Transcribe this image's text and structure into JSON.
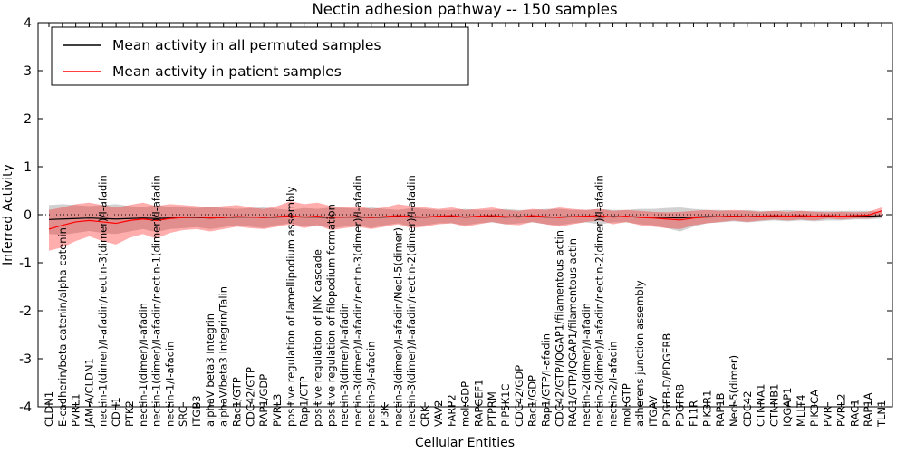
{
  "chart_data": {
    "type": "line",
    "title": "Nectin adhesion pathway -- 150 samples",
    "xlabel": "Cellular Entities",
    "ylabel": "Inferred Activity",
    "ylim": [
      -4,
      4
    ],
    "yticks": [
      -4,
      -3,
      -2,
      -1,
      0,
      1,
      2,
      3,
      4
    ],
    "grid": false,
    "zero_line": true,
    "legend_position": "upper left",
    "categories": [
      "CLDN1",
      "E-cadherin/beta catenin/alpha catenin",
      "PVRL1",
      "JAM-A/CLDN1",
      "nectin-1(dimer)/I-afadin/nectin-3(dimer)/I-afadin",
      "CDH1",
      "PTK2",
      "nectin-1(dimer)/I-afadin",
      "nectin-1(dimer)/I-afadin/nectin-1(dimer)/I-afadin",
      "nectin-1/I-afadin",
      "SRC",
      "ITGB3",
      "alphaV beta3 Integrin",
      "alphaV/beta3 Integrin/Talin",
      "Rac1/GTP",
      "CDC42/GTP",
      "RAP1/GDP",
      "PVRL3",
      "positive regulation of lamellipodium assembly",
      "Rap1/GTP",
      "positive regulation of JNK cascade",
      "positive regulation of filopodium formation",
      "nectin-3(dimer)/I-afadin",
      "nectin-3(dimer)/I-afadin/nectin-3(dimer)/I-afadin",
      "nectin-3/I-afadin",
      "PI3K",
      "nectin-3(dimer)/I-afadin/Necl-5(dimer)",
      "nectin-3(dimer)/I-afadin/nectin-2(dimer)/I-afadin",
      "CRK",
      "VAV2",
      "FARP2",
      "mol:GDP",
      "RAPGEF1",
      "PTPRM",
      "PIP5K1C",
      "CDC42/GDP",
      "Rac1/GDP",
      "Rap1/GTP/I-afadin",
      "CDC42/GTP/IQGAP1/filamentous actin",
      "RAC1/GTP/IQGAP1/filamentous actin",
      "nectin-2(dimer)/I-afadin",
      "nectin-2(dimer)/I-afadin/nectin-2(dimer)/I-afadin",
      "nectin-2/I-afadin",
      "mol:GTP",
      "adherens junction assembly",
      "ITGAV",
      "PDGFB-D/PDGFRB",
      "PDGFRB",
      "F11R",
      "PIK3R1",
      "RAP1B",
      "Necl-5(dimer)",
      "CDC42",
      "CTNNA1",
      "CTNNB1",
      "IQGAP1",
      "MLLT4",
      "PIK3CA",
      "PVR",
      "PVRL2",
      "RAC1",
      "RAP1A",
      "TLN1"
    ],
    "series": [
      {
        "name": "Mean activity in all permuted samples",
        "color": "#000000",
        "values": [
          -0.1,
          -0.09,
          -0.08,
          -0.07,
          -0.08,
          -0.09,
          -0.08,
          -0.07,
          -0.08,
          -0.07,
          -0.06,
          -0.06,
          -0.07,
          -0.06,
          -0.05,
          -0.05,
          -0.06,
          -0.05,
          -0.04,
          -0.05,
          -0.05,
          -0.06,
          -0.05,
          -0.05,
          -0.06,
          -0.05,
          -0.04,
          -0.05,
          -0.05,
          -0.04,
          -0.04,
          -0.05,
          -0.04,
          -0.04,
          -0.05,
          -0.04,
          -0.04,
          -0.05,
          -0.05,
          -0.04,
          -0.04,
          -0.05,
          -0.04,
          -0.04,
          -0.05,
          -0.05,
          -0.06,
          -0.07,
          -0.05,
          -0.04,
          -0.04,
          -0.03,
          -0.04,
          -0.03,
          -0.03,
          -0.04,
          -0.03,
          -0.03,
          -0.03,
          -0.03,
          -0.03,
          -0.03,
          -0.02
        ]
      },
      {
        "name": "Mean activity in patient samples",
        "color": "#ff0000",
        "values": [
          -0.3,
          -0.22,
          -0.15,
          -0.12,
          -0.15,
          -0.18,
          -0.12,
          -0.09,
          -0.12,
          -0.08,
          -0.06,
          -0.05,
          -0.07,
          -0.06,
          -0.04,
          -0.05,
          -0.06,
          -0.04,
          -0.02,
          -0.05,
          -0.03,
          -0.06,
          -0.05,
          -0.04,
          -0.06,
          -0.04,
          -0.02,
          -0.04,
          -0.05,
          -0.03,
          -0.02,
          -0.05,
          -0.03,
          -0.02,
          -0.04,
          -0.05,
          -0.02,
          -0.04,
          -0.06,
          -0.04,
          -0.03,
          -0.02,
          -0.05,
          -0.03,
          -0.06,
          -0.07,
          -0.09,
          -0.11,
          -0.07,
          -0.05,
          -0.04,
          -0.03,
          -0.04,
          -0.03,
          -0.02,
          -0.03,
          -0.02,
          -0.03,
          -0.02,
          -0.03,
          -0.02,
          -0.01,
          0.08
        ]
      }
    ],
    "bands": [
      {
        "name": "permuted-samples-range",
        "color": "rgba(0,0,0,0.18)",
        "upper": [
          0.2,
          0.22,
          0.2,
          0.18,
          0.2,
          0.22,
          0.18,
          0.16,
          0.2,
          0.16,
          0.15,
          0.14,
          0.16,
          0.14,
          0.12,
          0.14,
          0.15,
          0.12,
          0.1,
          0.14,
          0.12,
          0.15,
          0.14,
          0.12,
          0.15,
          0.12,
          0.1,
          0.14,
          0.12,
          0.1,
          0.1,
          0.12,
          0.1,
          0.1,
          0.12,
          0.1,
          0.1,
          0.12,
          0.12,
          0.1,
          0.1,
          0.12,
          0.1,
          0.1,
          0.12,
          0.12,
          0.14,
          0.15,
          0.12,
          0.1,
          0.1,
          0.08,
          0.1,
          0.08,
          0.08,
          0.1,
          0.08,
          0.08,
          0.08,
          0.08,
          0.08,
          0.08,
          0.06
        ],
        "lower": [
          -0.4,
          -0.42,
          -0.38,
          -0.34,
          -0.38,
          -0.4,
          -0.35,
          -0.3,
          -0.36,
          -0.3,
          -0.28,
          -0.26,
          -0.3,
          -0.26,
          -0.22,
          -0.25,
          -0.28,
          -0.22,
          -0.18,
          -0.25,
          -0.22,
          -0.28,
          -0.25,
          -0.22,
          -0.28,
          -0.22,
          -0.18,
          -0.25,
          -0.22,
          -0.18,
          -0.18,
          -0.22,
          -0.18,
          -0.16,
          -0.2,
          -0.18,
          -0.16,
          -0.2,
          -0.22,
          -0.18,
          -0.16,
          -0.2,
          -0.16,
          -0.16,
          -0.2,
          -0.22,
          -0.28,
          -0.35,
          -0.25,
          -0.18,
          -0.16,
          -0.14,
          -0.16,
          -0.14,
          -0.12,
          -0.14,
          -0.12,
          -0.14,
          -0.12,
          -0.12,
          -0.1,
          -0.1,
          -0.08
        ]
      },
      {
        "name": "patient-samples-range",
        "color": "rgba(255,0,0,0.32)",
        "upper": [
          0.1,
          0.15,
          0.22,
          0.25,
          0.2,
          0.15,
          0.2,
          0.25,
          0.18,
          0.22,
          0.2,
          0.18,
          0.15,
          0.18,
          0.2,
          0.15,
          0.12,
          0.18,
          0.28,
          0.22,
          0.25,
          0.18,
          0.15,
          0.18,
          0.12,
          0.15,
          0.22,
          0.18,
          0.15,
          0.12,
          0.15,
          0.1,
          0.12,
          0.15,
          0.1,
          0.08,
          0.12,
          0.1,
          0.15,
          0.12,
          0.1,
          0.12,
          0.08,
          0.1,
          0.08,
          0.06,
          0.05,
          0.06,
          0.08,
          0.1,
          0.08,
          0.1,
          0.08,
          0.06,
          0.08,
          0.06,
          0.08,
          0.06,
          0.05,
          0.06,
          0.05,
          0.06,
          0.15
        ],
        "lower": [
          -0.75,
          -0.68,
          -0.55,
          -0.45,
          -0.55,
          -0.62,
          -0.48,
          -0.4,
          -0.5,
          -0.38,
          -0.32,
          -0.3,
          -0.35,
          -0.3,
          -0.25,
          -0.28,
          -0.3,
          -0.25,
          -0.2,
          -0.28,
          -0.22,
          -0.32,
          -0.28,
          -0.25,
          -0.3,
          -0.25,
          -0.2,
          -0.28,
          -0.25,
          -0.2,
          -0.18,
          -0.25,
          -0.2,
          -0.15,
          -0.2,
          -0.22,
          -0.15,
          -0.2,
          -0.25,
          -0.2,
          -0.15,
          -0.12,
          -0.2,
          -0.15,
          -0.22,
          -0.25,
          -0.28,
          -0.3,
          -0.22,
          -0.18,
          -0.15,
          -0.12,
          -0.15,
          -0.12,
          -0.1,
          -0.12,
          -0.1,
          -0.12,
          -0.08,
          -0.1,
          -0.08,
          -0.08,
          -0.05
        ]
      }
    ]
  }
}
